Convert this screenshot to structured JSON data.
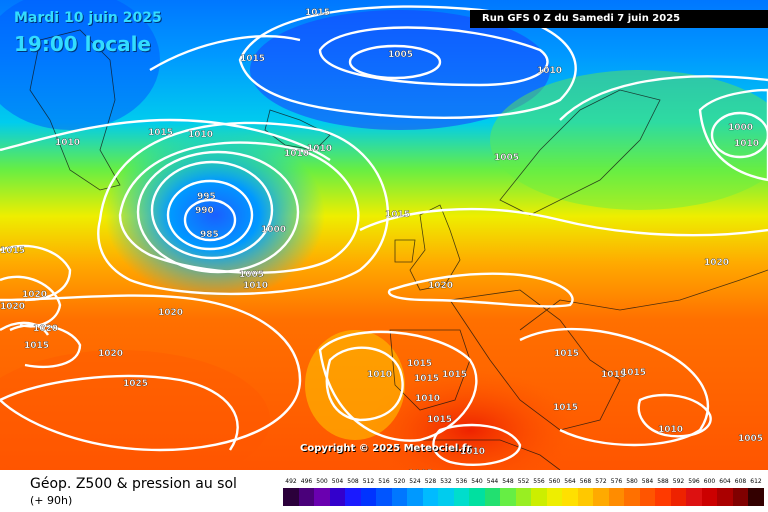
{
  "header": {
    "date": "Mardi 10 juin 2025",
    "time": "19:00 locale",
    "run": "Run GFS 0 Z du Samedi 7 juin 2025"
  },
  "copyright": "Copyright © 2025 Meteociel.fr",
  "legend": {
    "title": "Géop. Z500 & pression au sol",
    "subtitle": "(+ 90h)",
    "scale_values": [
      "492",
      "496",
      "500",
      "504",
      "508",
      "512",
      "516",
      "520",
      "524",
      "528",
      "532",
      "536",
      "540",
      "544",
      "548",
      "552",
      "556",
      "560",
      "564",
      "568",
      "572",
      "576",
      "580",
      "584",
      "588",
      "592",
      "596",
      "600",
      "604",
      "608",
      "612"
    ],
    "scale_colors": [
      "#2b003b",
      "#4a007a",
      "#6a00b0",
      "#3300cc",
      "#1a1aff",
      "#0033ff",
      "#0055ff",
      "#0077ff",
      "#0099ff",
      "#00bbff",
      "#00ccee",
      "#00ddcc",
      "#00e0a0",
      "#22e070",
      "#66ee44",
      "#99ee22",
      "#ccee00",
      "#eeee00",
      "#ffe000",
      "#ffc800",
      "#ffaa00",
      "#ff8c00",
      "#ff7000",
      "#ff5500",
      "#ff3a00",
      "#ee2200",
      "#dd1111",
      "#cc0000",
      "#aa0000",
      "#800000",
      "#330000"
    ]
  },
  "pressure_labels": [
    {
      "text": "1015"
    },
    {
      "text": "1005"
    },
    {
      "text": "1010"
    },
    {
      "text": "1015"
    },
    {
      "text": "1015"
    },
    {
      "text": "1010"
    },
    {
      "text": "1010"
    },
    {
      "text": "1010"
    },
    {
      "text": "1010"
    },
    {
      "text": "1005"
    },
    {
      "text": "1000"
    },
    {
      "text": "995"
    },
    {
      "text": "990"
    },
    {
      "text": "985"
    },
    {
      "text": "1000"
    },
    {
      "text": "1015"
    },
    {
      "text": "1005"
    },
    {
      "text": "1010"
    },
    {
      "text": "1015"
    },
    {
      "text": "1020"
    },
    {
      "text": "1020"
    },
    {
      "text": "1020"
    },
    {
      "text": "1020"
    },
    {
      "text": "1020"
    },
    {
      "text": "1015"
    },
    {
      "text": "1020"
    },
    {
      "text": "1025"
    },
    {
      "text": "1010"
    },
    {
      "text": "1015"
    },
    {
      "text": "1015"
    },
    {
      "text": "1015"
    },
    {
      "text": "1010"
    },
    {
      "text": "1015"
    },
    {
      "text": "1015"
    },
    {
      "text": "1015"
    },
    {
      "text": "1015"
    },
    {
      "text": "1010"
    },
    {
      "text": "1010"
    },
    {
      "text": "1015"
    },
    {
      "text": "1005"
    },
    {
      "text": "1005"
    },
    {
      "text": "1020"
    },
    {
      "text": "1010"
    }
  ]
}
